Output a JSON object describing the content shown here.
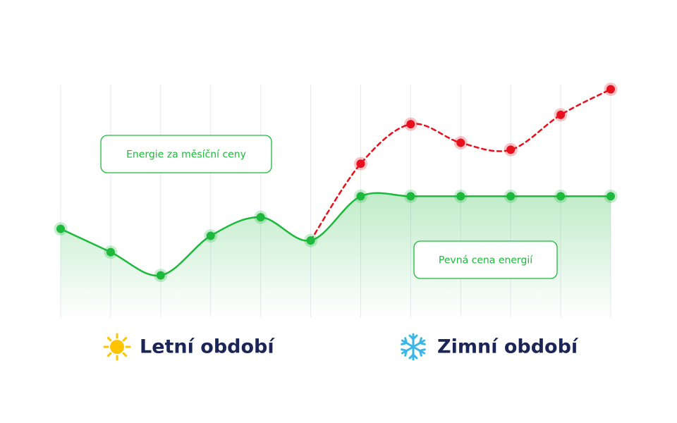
{
  "chart_data": {
    "type": "line",
    "categories": [
      null,
      null,
      null,
      null,
      null,
      null,
      null,
      null,
      null,
      null,
      null,
      null
    ],
    "ylim": [
      0,
      100
    ],
    "grid": true,
    "series": [
      {
        "name": "Energie za měsíční ceny",
        "color": "#e8101c",
        "dashed": true,
        "values": [
          null,
          null,
          null,
          null,
          null,
          33,
          66,
          83,
          75,
          72,
          87,
          98
        ]
      },
      {
        "name": "Pevná cena energií",
        "color": "#1db93c",
        "area": true,
        "values": [
          38,
          28,
          18,
          35,
          43,
          33,
          52,
          52,
          52,
          52,
          52,
          52
        ]
      }
    ],
    "annotations": [
      "Letní období",
      "Zimní období"
    ]
  }
}
